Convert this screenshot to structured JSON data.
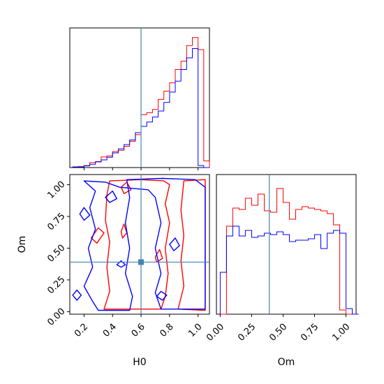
{
  "chart_data": {
    "type": "corner",
    "parameters": [
      "H0",
      "Om"
    ],
    "colors": {
      "red": "#ff0000",
      "blue": "#0000ff",
      "truth": "#4682b4"
    },
    "truth": {
      "H0": 0.6,
      "Om": 0.39
    },
    "panels": [
      {
        "id": "H0_marginal",
        "type": "histogram",
        "xlim": [
          0.1,
          1.08
        ],
        "bins": [
          0.12,
          0.16,
          0.2,
          0.24,
          0.28,
          0.32,
          0.36,
          0.4,
          0.44,
          0.48,
          0.52,
          0.56,
          0.6,
          0.64,
          0.68,
          0.72,
          0.76,
          0.8,
          0.84,
          0.88,
          0.92,
          0.96,
          1.0,
          1.04
        ],
        "series": [
          {
            "color": "red",
            "values": [
              0.2,
              0.3,
              0.6,
              1.5,
              1.8,
              3.2,
              3.5,
              4.8,
              5.2,
              6.4,
              7.9,
              9.9,
              15.9,
              16.5,
              17.5,
              20.5,
              23.0,
              25.5,
              29.5,
              32.0,
              36.7,
              39.1,
              35.5,
              2.0
            ]
          },
          {
            "color": "blue",
            "values": [
              0.2,
              0.2,
              0.5,
              1.0,
              1.7,
              2.3,
              3.1,
              4.4,
              5.6,
              6.9,
              8.3,
              10.5,
              12.4,
              13.7,
              15.2,
              17.0,
              19.6,
              22.7,
              26.0,
              29.5,
              33.0,
              35.8,
              0.6,
              0.0
            ]
          }
        ]
      },
      {
        "id": "H0_Om_2d",
        "type": "contour",
        "xlim": [
          0.1,
          1.08
        ],
        "ylim": [
          -0.02,
          1.08
        ],
        "xticks": [
          "0.2",
          "0.4",
          "0.6",
          "0.8",
          "1.0"
        ],
        "yticks": [
          "0.00",
          "0.25",
          "0.50",
          "0.75",
          "1.00"
        ],
        "xlabel": "H0",
        "ylabel": "Om",
        "contours": [
          {
            "color": "red",
            "points": [
              [
                0.34,
                0.02
              ],
              [
                0.38,
                0.16
              ],
              [
                0.36,
                0.35
              ],
              [
                0.38,
                0.55
              ],
              [
                0.35,
                0.72
              ],
              [
                0.36,
                0.92
              ],
              [
                0.38,
                1.03
              ],
              [
                0.6,
                1.04
              ],
              [
                0.76,
                1.03
              ],
              [
                0.8,
                1.0
              ],
              [
                0.77,
                0.85
              ],
              [
                0.8,
                0.7
              ],
              [
                0.77,
                0.5
              ],
              [
                0.79,
                0.3
              ],
              [
                0.77,
                0.12
              ],
              [
                0.74,
                0.02
              ]
            ]
          },
          {
            "color": "red",
            "points": [
              [
                0.86,
                0.02
              ],
              [
                0.9,
                0.2
              ],
              [
                0.88,
                0.4
              ],
              [
                0.9,
                0.6
              ],
              [
                0.88,
                0.8
              ],
              [
                0.9,
                1.03
              ],
              [
                1.05,
                1.04
              ],
              [
                1.05,
                0.01
              ]
            ]
          },
          {
            "color": "red",
            "points": [
              [
                0.25,
                0.58
              ],
              [
                0.3,
                0.66
              ],
              [
                0.34,
                0.62
              ],
              [
                0.29,
                0.54
              ]
            ]
          },
          {
            "color": "red",
            "points": [
              [
                0.46,
                0.63
              ],
              [
                0.48,
                0.69
              ],
              [
                0.5,
                0.62
              ],
              [
                0.47,
                0.58
              ]
            ]
          },
          {
            "color": "red",
            "points": [
              [
                0.46,
                0.98
              ],
              [
                0.5,
                1.02
              ],
              [
                0.53,
                0.96
              ],
              [
                0.48,
                0.93
              ]
            ]
          },
          {
            "color": "red",
            "points": [
              [
                0.7,
                0.43
              ],
              [
                0.73,
                0.49
              ],
              [
                0.75,
                0.42
              ],
              [
                0.71,
                0.39
              ]
            ]
          },
          {
            "color": "blue",
            "points": [
              [
                0.2,
                1.03
              ],
              [
                0.28,
                0.95
              ],
              [
                0.24,
                0.82
              ],
              [
                0.28,
                0.65
              ],
              [
                0.23,
                0.5
              ],
              [
                0.26,
                0.35
              ],
              [
                0.2,
                0.2
              ],
              [
                0.26,
                0.08
              ],
              [
                0.3,
                0.01
              ],
              [
                0.52,
                0.01
              ],
              [
                0.54,
                0.12
              ],
              [
                0.49,
                0.3
              ],
              [
                0.52,
                0.5
              ],
              [
                0.49,
                0.7
              ],
              [
                0.52,
                0.9
              ],
              [
                0.5,
                1.04
              ],
              [
                0.75,
                1.05
              ],
              [
                0.98,
                1.04
              ],
              [
                1.05,
                0.98
              ],
              [
                1.05,
                0.02
              ],
              [
                0.74,
                0.02
              ],
              [
                0.7,
                0.15
              ],
              [
                0.74,
                0.3
              ],
              [
                0.7,
                0.5
              ],
              [
                0.74,
                0.7
              ],
              [
                0.7,
                0.9
              ],
              [
                0.65,
                0.96
              ],
              [
                0.45,
                0.98
              ],
              [
                0.35,
                1.02
              ]
            ]
          },
          {
            "color": "blue",
            "points": [
              [
                0.12,
                0.13
              ],
              [
                0.15,
                0.17
              ],
              [
                0.18,
                0.13
              ],
              [
                0.15,
                0.09
              ]
            ]
          },
          {
            "color": "blue",
            "points": [
              [
                0.17,
                0.77
              ],
              [
                0.2,
                0.82
              ],
              [
                0.24,
                0.76
              ],
              [
                0.2,
                0.72
              ]
            ]
          },
          {
            "color": "blue",
            "points": [
              [
                0.35,
                0.9
              ],
              [
                0.4,
                0.95
              ],
              [
                0.43,
                0.89
              ],
              [
                0.38,
                0.86
              ]
            ]
          },
          {
            "color": "blue",
            "points": [
              [
                0.43,
                0.37
              ],
              [
                0.46,
                0.4
              ],
              [
                0.49,
                0.37
              ],
              [
                0.46,
                0.35
              ]
            ]
          },
          {
            "color": "blue",
            "points": [
              [
                0.71,
                0.12
              ],
              [
                0.74,
                0.16
              ],
              [
                0.78,
                0.13
              ],
              [
                0.75,
                0.09
              ]
            ]
          },
          {
            "color": "blue",
            "points": [
              [
                0.8,
                0.53
              ],
              [
                0.84,
                0.58
              ],
              [
                0.87,
                0.52
              ],
              [
                0.83,
                0.48
              ]
            ]
          }
        ]
      },
      {
        "id": "Om_marginal",
        "type": "histogram",
        "xlim": [
          -0.03,
          1.08
        ],
        "xticks": [
          "0.00",
          "0.25",
          "0.50",
          "0.75",
          "1.00"
        ],
        "xlabel": "Om",
        "bins": [
          0.0,
          0.05,
          0.1,
          0.15,
          0.2,
          0.25,
          0.3,
          0.35,
          0.4,
          0.45,
          0.5,
          0.55,
          0.6,
          0.65,
          0.7,
          0.75,
          0.8,
          0.85,
          0.9,
          0.95,
          1.0,
          1.05
        ],
        "series": [
          {
            "color": "red",
            "values": [
              0.0,
              0.63,
              0.76,
              0.75,
              0.83,
              0.78,
              0.86,
              0.74,
              0.73,
              0.9,
              0.8,
              0.68,
              0.75,
              0.77,
              0.76,
              0.75,
              0.74,
              0.72,
              0.64,
              0.03,
              0.0,
              0.0
            ]
          },
          {
            "color": "blue",
            "values": [
              0.3,
              0.56,
              0.63,
              0.56,
              0.6,
              0.55,
              0.56,
              0.58,
              0.57,
              0.59,
              0.57,
              0.52,
              0.53,
              0.53,
              0.54,
              0.57,
              0.47,
              0.58,
              0.6,
              0.58,
              0.04,
              0.0
            ]
          }
        ]
      }
    ]
  }
}
